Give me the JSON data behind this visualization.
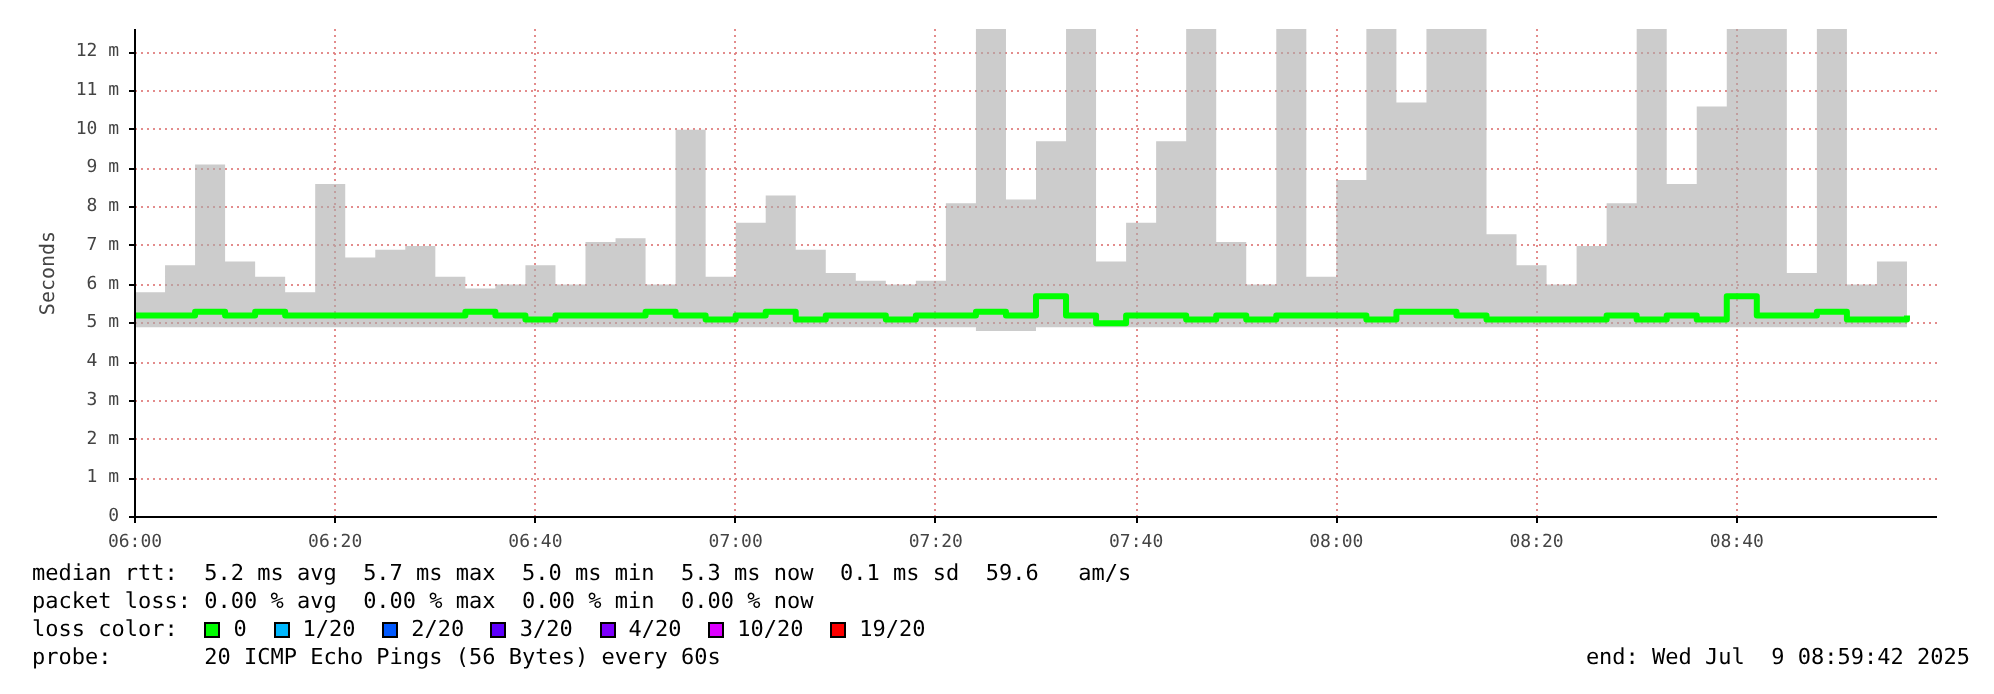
{
  "chart_data": {
    "type": "step",
    "ylabel": "Seconds",
    "xlim": [
      6,
      9
    ],
    "ylim": [
      0,
      12.6
    ],
    "xticks": [
      {
        "value": 6,
        "label": "06:00"
      },
      {
        "value": 6.3333,
        "label": "06:20"
      },
      {
        "value": 6.6667,
        "label": "06:40"
      },
      {
        "value": 7,
        "label": "07:00"
      },
      {
        "value": 7.3333,
        "label": "07:20"
      },
      {
        "value": 7.6667,
        "label": "07:40"
      },
      {
        "value": 8,
        "label": "08:00"
      },
      {
        "value": 8.3333,
        "label": "08:20"
      },
      {
        "value": 8.6667,
        "label": "08:40"
      }
    ],
    "yticks": [
      0,
      {
        "value": 1,
        "label": "1 m"
      },
      {
        "value": 2,
        "label": "2 m"
      },
      {
        "value": 3,
        "label": "3 m"
      },
      {
        "value": 4,
        "label": "4 m"
      },
      {
        "value": 5,
        "label": "5 m"
      },
      {
        "value": 6,
        "label": "6 m"
      },
      {
        "value": 7,
        "label": "7 m"
      },
      {
        "value": 8,
        "label": "8 m"
      },
      {
        "value": 9,
        "label": "9 m"
      },
      {
        "value": 10,
        "label": "10 m"
      },
      {
        "value": 11,
        "label": "11 m"
      },
      {
        "value": 12,
        "label": "12 m"
      }
    ],
    "x": [
      6.0,
      6.05,
      6.1,
      6.15,
      6.2,
      6.25,
      6.3,
      6.35,
      6.4,
      6.45,
      6.5,
      6.55,
      6.6,
      6.65,
      6.7,
      6.75,
      6.8,
      6.85,
      6.9,
      6.95,
      7.0,
      7.05,
      7.1,
      7.15,
      7.2,
      7.25,
      7.3,
      7.35,
      7.4,
      7.45,
      7.5,
      7.55,
      7.6,
      7.65,
      7.7,
      7.75,
      7.8,
      7.85,
      7.9,
      7.95,
      8.0,
      8.05,
      8.1,
      8.15,
      8.2,
      8.25,
      8.3,
      8.35,
      8.4,
      8.45,
      8.5,
      8.55,
      8.6,
      8.65,
      8.7,
      8.75,
      8.8,
      8.85,
      8.9,
      8.95
    ],
    "series": [
      {
        "name": "0",
        "color": "#00ff00",
        "values": [
          5.2,
          5.2,
          5.3,
          5.2,
          5.3,
          5.2,
          5.2,
          5.2,
          5.2,
          5.2,
          5.2,
          5.3,
          5.2,
          5.1,
          5.2,
          5.2,
          5.2,
          5.3,
          5.2,
          5.1,
          5.2,
          5.3,
          5.1,
          5.2,
          5.2,
          5.1,
          5.2,
          5.2,
          5.3,
          5.2,
          5.7,
          5.2,
          5.0,
          5.2,
          5.2,
          5.1,
          5.2,
          5.1,
          5.2,
          5.2,
          5.2,
          5.1,
          5.3,
          5.3,
          5.2,
          5.1,
          5.1,
          5.1,
          5.1,
          5.2,
          5.1,
          5.2,
          5.1,
          5.7,
          5.2,
          5.2,
          5.3,
          5.1,
          5.1,
          5.2
        ],
        "lower": [
          4.9,
          4.9,
          4.9,
          4.9,
          4.9,
          4.9,
          4.9,
          4.9,
          4.9,
          4.9,
          4.9,
          4.9,
          4.9,
          4.9,
          4.9,
          4.9,
          4.9,
          4.9,
          4.9,
          4.9,
          4.9,
          4.9,
          4.9,
          4.9,
          4.9,
          4.9,
          4.9,
          4.9,
          4.8,
          4.8,
          4.9,
          4.9,
          4.9,
          4.9,
          4.9,
          4.9,
          4.9,
          4.9,
          4.9,
          4.9,
          4.9,
          4.9,
          4.9,
          4.9,
          4.9,
          4.9,
          4.9,
          4.9,
          4.9,
          4.9,
          4.9,
          4.9,
          4.9,
          4.9,
          4.9,
          4.9,
          4.9,
          4.9,
          4.9,
          4.9
        ],
        "upper": [
          5.8,
          6.5,
          9.1,
          6.6,
          6.2,
          5.8,
          8.6,
          6.7,
          6.9,
          7.0,
          6.2,
          5.9,
          6.0,
          6.5,
          6.0,
          7.1,
          7.2,
          6.0,
          10.0,
          6.2,
          7.6,
          8.3,
          6.9,
          6.3,
          6.1,
          6.0,
          6.1,
          8.1,
          12.6,
          8.2,
          9.7,
          12.6,
          6.6,
          7.6,
          9.7,
          12.6,
          7.1,
          6.0,
          12.6,
          6.2,
          8.7,
          12.6,
          10.7,
          12.6,
          12.6,
          7.3,
          6.5,
          6.0,
          7.0,
          8.1,
          12.6,
          8.6,
          10.6,
          12.6,
          12.6,
          6.3,
          12.6,
          6.0,
          6.6,
          5.9
        ]
      },
      {
        "name": "1/20",
        "color": "#00b8ff",
        "values": [
          null,
          null,
          null,
          null,
          null,
          null,
          null,
          null,
          null,
          null,
          null,
          null,
          null,
          null,
          null,
          null,
          null,
          null,
          null,
          null,
          null,
          null,
          null,
          null,
          null,
          null,
          null,
          null,
          null,
          null,
          null,
          null,
          null,
          null,
          null,
          null,
          null,
          null,
          null,
          null,
          null,
          null,
          null,
          null,
          null,
          null,
          null,
          null,
          null,
          null,
          null,
          null,
          null,
          null,
          null,
          null,
          null,
          null,
          null,
          null
        ]
      },
      {
        "name": "2/20",
        "color": "#0059ff",
        "values": [
          null,
          null,
          null,
          null,
          null,
          null,
          null,
          null,
          null,
          null,
          null,
          null,
          null,
          null,
          null,
          null,
          null,
          null,
          null,
          null,
          null,
          null,
          null,
          null,
          null,
          null,
          null,
          null,
          null,
          null,
          null,
          null,
          null,
          null,
          null,
          null,
          null,
          null,
          null,
          null,
          null,
          null,
          null,
          null,
          null,
          null,
          null,
          null,
          null,
          null,
          null,
          null,
          null,
          null,
          null,
          null,
          null,
          null,
          null,
          null
        ]
      },
      {
        "name": "3/20",
        "color": "#5e00ff",
        "values": [
          null,
          null,
          null,
          null,
          null,
          null,
          null,
          null,
          null,
          null,
          null,
          null,
          null,
          null,
          null,
          null,
          null,
          null,
          null,
          null,
          null,
          null,
          null,
          null,
          null,
          null,
          null,
          null,
          null,
          null,
          null,
          null,
          null,
          null,
          null,
          null,
          null,
          null,
          null,
          null,
          null,
          null,
          null,
          null,
          null,
          null,
          null,
          null,
          null,
          null,
          null,
          null,
          null,
          null,
          null,
          null,
          null,
          null,
          null,
          null
        ]
      },
      {
        "name": "4/20",
        "color": "#7e00ff",
        "values": [
          null,
          null,
          null,
          null,
          null,
          null,
          null,
          null,
          null,
          null,
          null,
          null,
          null,
          null,
          null,
          null,
          null,
          null,
          null,
          null,
          null,
          null,
          null,
          null,
          null,
          null,
          null,
          null,
          null,
          null,
          null,
          null,
          null,
          null,
          null,
          null,
          null,
          null,
          null,
          null,
          null,
          null,
          null,
          null,
          null,
          null,
          null,
          null,
          null,
          null,
          null,
          null,
          null,
          null,
          null,
          null,
          null,
          null,
          null,
          null
        ]
      },
      {
        "name": "10/20",
        "color": "#dd00ff",
        "values": [
          null,
          null,
          null,
          null,
          null,
          null,
          null,
          null,
          null,
          null,
          null,
          null,
          null,
          null,
          null,
          null,
          null,
          null,
          null,
          null,
          null,
          null,
          null,
          null,
          null,
          null,
          null,
          null,
          null,
          null,
          null,
          null,
          null,
          null,
          null,
          null,
          null,
          null,
          null,
          null,
          null,
          null,
          null,
          null,
          null,
          null,
          null,
          null,
          null,
          null,
          null,
          null,
          null,
          null,
          null,
          null,
          null,
          null,
          null,
          null
        ]
      },
      {
        "name": "19/20",
        "color": "#ff0000",
        "values": [
          null,
          null,
          null,
          null,
          null,
          null,
          null,
          null,
          null,
          null,
          null,
          null,
          null,
          null,
          null,
          null,
          null,
          null,
          null,
          null,
          null,
          null,
          null,
          null,
          null,
          null,
          null,
          null,
          null,
          null,
          null,
          null,
          null,
          null,
          null,
          null,
          null,
          null,
          null,
          null,
          null,
          null,
          null,
          null,
          null,
          null,
          null,
          null,
          null,
          null,
          null,
          null,
          null,
          null,
          null,
          null,
          null,
          null,
          null,
          null
        ]
      }
    ],
    "legend": "bottom",
    "legend_title": "loss color:",
    "grid": true,
    "annotations": [
      "median rtt:  5.2 ms avg  5.7 ms max  5.0 ms min  5.3 ms now  0.1 ms sd  59.6   am/s",
      "packet loss: 0.00 % avg  0.00 % max  0.00 % min  0.00 % now",
      "probe:       20 ICMP Echo Pings (56 Bytes) every 60s",
      "end: Wed Jul  9 08:59:42 2025"
    ]
  }
}
